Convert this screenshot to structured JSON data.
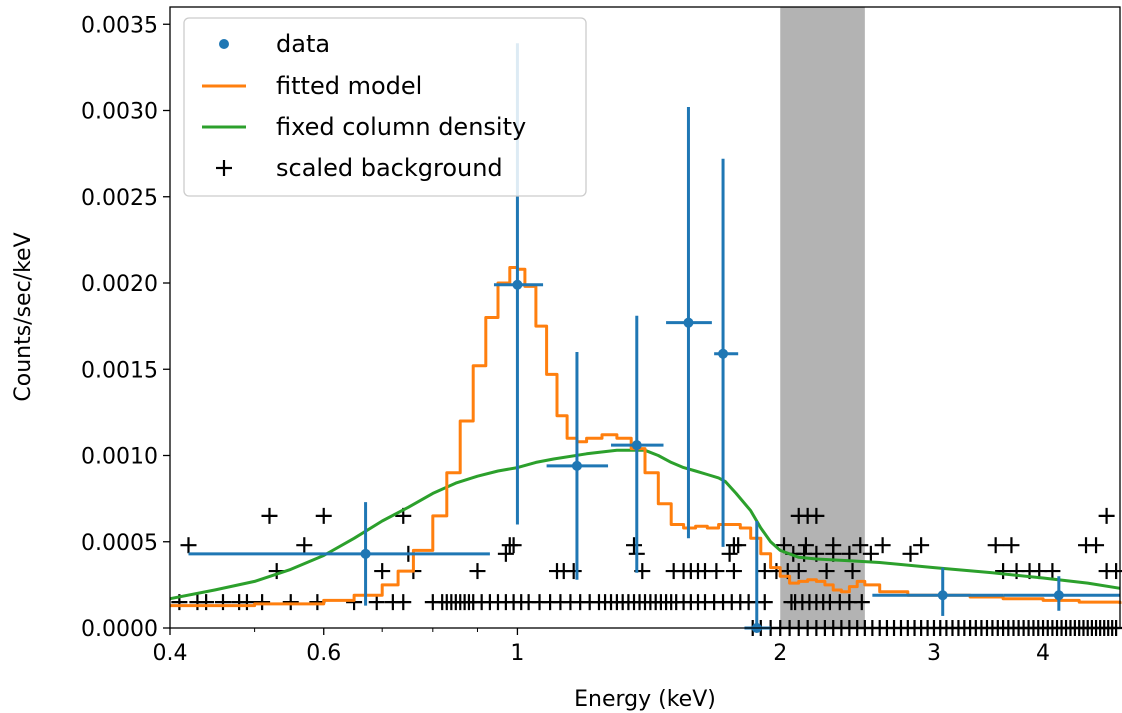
{
  "chart_data": {
    "type": "scatter",
    "xlabel": "Energy (keV)",
    "ylabel": "Counts/sec/keV",
    "xscale": "log",
    "xlim": [
      0.4,
      4.9
    ],
    "ylim": [
      0.0,
      0.0036
    ],
    "grid": false,
    "legend_position": "top-left",
    "x_major_ticks": [
      0.4,
      0.6,
      1,
      2,
      3,
      4
    ],
    "x_major_tick_labels": [
      "0.4",
      "0.6",
      "1",
      "2",
      "3",
      "4"
    ],
    "x_minor_ticks": [
      0.5,
      0.7,
      0.8,
      0.9
    ],
    "y_ticks": [
      0.0,
      0.0005,
      0.001,
      0.0015,
      0.002,
      0.0025,
      0.003,
      0.0035
    ],
    "y_tick_labels": [
      "0.0000",
      "0.0005",
      "0.0010",
      "0.0015",
      "0.0020",
      "0.0025",
      "0.0030",
      "0.0035"
    ],
    "excluded_band": {
      "x0": 2.0,
      "x1": 2.5,
      "color": "#b3b3b3"
    },
    "series": [
      {
        "name": "data",
        "kind": "errorbar",
        "color": "#1f77b4",
        "points": [
          {
            "x": 0.67,
            "y": 0.00043,
            "xlo": 0.42,
            "xhi": 0.93,
            "ylo": 0.00013,
            "yhi": 0.00073
          },
          {
            "x": 1.0,
            "y": 0.00199,
            "xlo": 0.94,
            "xhi": 1.07,
            "ylo": 0.0006,
            "yhi": 0.00339
          },
          {
            "x": 1.17,
            "y": 0.00094,
            "xlo": 1.08,
            "xhi": 1.27,
            "ylo": 0.00028,
            "yhi": 0.0016
          },
          {
            "x": 1.37,
            "y": 0.00106,
            "xlo": 1.28,
            "xhi": 1.47,
            "ylo": 0.00032,
            "yhi": 0.00181
          },
          {
            "x": 1.57,
            "y": 0.00177,
            "xlo": 1.48,
            "xhi": 1.67,
            "ylo": 0.00052,
            "yhi": 0.00302
          },
          {
            "x": 1.72,
            "y": 0.00159,
            "xlo": 1.68,
            "xhi": 1.79,
            "ylo": 0.00047,
            "yhi": 0.00272
          },
          {
            "x": 1.88,
            "y": 0.0,
            "xlo": 1.82,
            "xhi": 1.95,
            "ylo": 0.0,
            "yhi": 0.00062
          },
          {
            "x": 3.07,
            "y": 0.00019,
            "xlo": 2.55,
            "xhi": 3.6,
            "ylo": 7e-05,
            "yhi": 0.00035
          },
          {
            "x": 4.17,
            "y": 0.00019,
            "xlo": 3.6,
            "xhi": 4.9,
            "ylo": 0.0001,
            "yhi": 0.0003
          }
        ]
      },
      {
        "name": "fitted model",
        "kind": "line",
        "color": "#ff7f0e",
        "x": [
          0.4,
          0.5,
          0.6,
          0.65,
          0.7,
          0.73,
          0.76,
          0.8,
          0.83,
          0.86,
          0.89,
          0.92,
          0.95,
          0.98,
          1.0,
          1.02,
          1.05,
          1.08,
          1.11,
          1.14,
          1.17,
          1.2,
          1.25,
          1.3,
          1.35,
          1.4,
          1.45,
          1.5,
          1.55,
          1.6,
          1.65,
          1.7,
          1.75,
          1.8,
          1.85,
          1.9,
          1.95,
          2.0,
          2.05,
          2.1,
          2.15,
          2.2,
          2.25,
          2.3,
          2.35,
          2.4,
          2.45,
          2.5,
          2.6,
          2.8,
          3.0,
          3.3,
          3.6,
          4.0,
          4.4,
          4.9
        ],
        "y": [
          0.00013,
          0.00014,
          0.00016,
          0.00019,
          0.00025,
          0.00033,
          0.00045,
          0.00065,
          0.0009,
          0.0012,
          0.00152,
          0.0018,
          0.002,
          0.00209,
          0.00208,
          0.00198,
          0.00175,
          0.00147,
          0.00123,
          0.0011,
          0.00108,
          0.0011,
          0.00112,
          0.0011,
          0.00104,
          0.0009,
          0.00072,
          0.0006,
          0.00058,
          0.00059,
          0.00058,
          0.0006,
          0.0006,
          0.00058,
          0.00052,
          0.00043,
          0.00035,
          0.0003,
          0.00026,
          0.00027,
          0.00028,
          0.00027,
          0.00025,
          0.00022,
          0.00021,
          0.00024,
          0.00027,
          0.00025,
          0.00021,
          0.00019,
          0.00019,
          0.00018,
          0.00017,
          0.00016,
          0.00015,
          0.00014
        ]
      },
      {
        "name": "fixed column density",
        "kind": "line",
        "color": "#2ca02c",
        "x": [
          0.4,
          0.45,
          0.5,
          0.55,
          0.6,
          0.65,
          0.7,
          0.75,
          0.8,
          0.85,
          0.9,
          0.95,
          1.0,
          1.05,
          1.1,
          1.2,
          1.3,
          1.4,
          1.45,
          1.5,
          1.55,
          1.6,
          1.65,
          1.7,
          1.73,
          1.78,
          1.85,
          1.9,
          1.95,
          2.0,
          2.1,
          2.2,
          2.4,
          2.6,
          3.0,
          3.5,
          4.0,
          4.5,
          4.9
        ],
        "y": [
          0.00017,
          0.00022,
          0.00027,
          0.00034,
          0.00042,
          0.00052,
          0.00062,
          0.0007,
          0.00078,
          0.00084,
          0.00088,
          0.00091,
          0.00093,
          0.00096,
          0.00098,
          0.00101,
          0.00103,
          0.00103,
          0.001,
          0.00096,
          0.00093,
          0.00091,
          0.00089,
          0.00087,
          0.00085,
          0.00078,
          0.00068,
          0.00058,
          0.0005,
          0.00045,
          0.00041,
          0.0004,
          0.00039,
          0.00038,
          0.00035,
          0.00032,
          0.00029,
          0.00026,
          0.00023
        ]
      },
      {
        "name": "scaled background",
        "kind": "marker",
        "marker": "+",
        "color": "#000000",
        "rows": [
          {
            "y": 0.0,
            "x": [
              1.86,
              1.9,
              1.95,
              2.0,
              2.05,
              2.1,
              2.15,
              2.2,
              2.25,
              2.3,
              2.35,
              2.4,
              2.45,
              2.5,
              2.55,
              2.6,
              2.65,
              2.7,
              2.75,
              2.8,
              2.85,
              2.9,
              2.95,
              3.0,
              3.05,
              3.1,
              3.15,
              3.2,
              3.25,
              3.3,
              3.35,
              3.4,
              3.45,
              3.5,
              3.55,
              3.6,
              3.65,
              3.7,
              3.75,
              3.8,
              3.85,
              3.9,
              3.95,
              4.0,
              4.05,
              4.1,
              4.15,
              4.2,
              4.25,
              4.3,
              4.35,
              4.4,
              4.45,
              4.5,
              4.55,
              4.6,
              4.65,
              4.7,
              4.75,
              4.8,
              4.85
            ]
          },
          {
            "y": 0.00015,
            "x": [
              0.41,
              0.43,
              0.44,
              0.46,
              0.48,
              0.49,
              0.51,
              0.55,
              0.59,
              0.65,
              0.69,
              0.72,
              0.74,
              0.8,
              0.82,
              0.83,
              0.84,
              0.85,
              0.86,
              0.87,
              0.88,
              0.89,
              0.91,
              0.93,
              0.95,
              0.97,
              0.99,
              1.01,
              1.03,
              1.06,
              1.09,
              1.12,
              1.15,
              1.18,
              1.21,
              1.24,
              1.26,
              1.28,
              1.3,
              1.32,
              1.34,
              1.36,
              1.38,
              1.4,
              1.42,
              1.44,
              1.46,
              1.48,
              1.5,
              1.52,
              1.55,
              1.58,
              1.61,
              1.64,
              1.68,
              1.72,
              1.76,
              1.8,
              1.84,
              1.88,
              1.92,
              2.06,
              2.08,
              2.12,
              2.16,
              2.2,
              2.24,
              2.28,
              2.34,
              2.4,
              2.48
            ]
          },
          {
            "y": 0.00033,
            "x": [
              0.53,
              0.7,
              0.76,
              0.9,
              1.11,
              1.13,
              1.16,
              1.39,
              1.51,
              1.55,
              1.58,
              1.61,
              1.64,
              1.69,
              1.77,
              1.92,
              1.98,
              2.04,
              2.1,
              2.26,
              2.42,
              3.6,
              3.73,
              3.86,
              3.96,
              4.1,
              4.73,
              4.85
            ]
          },
          {
            "y": 0.00043,
            "x": [
              0.75,
              0.97,
              1.37,
              1.75,
              2.07,
              2.13,
              2.2,
              2.3,
              2.4,
              2.54,
              2.82
            ]
          },
          {
            "y": 0.00048,
            "x": [
              0.42,
              0.57,
              0.98,
              0.99,
              1.36,
              1.77,
              1.79,
              2.02,
              2.14,
              2.3,
              2.47,
              2.62,
              2.9,
              3.53,
              3.68,
              4.48,
              4.6
            ]
          },
          {
            "y": 0.00065,
            "x": [
              0.52,
              0.6,
              0.74,
              2.1,
              2.15,
              2.2,
              4.73
            ]
          }
        ]
      }
    ]
  }
}
